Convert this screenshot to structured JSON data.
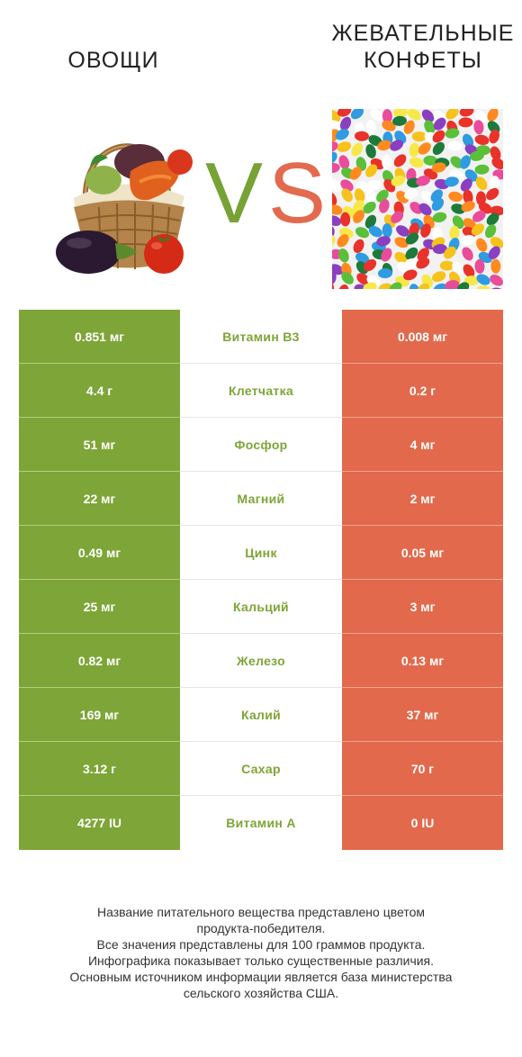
{
  "header": {
    "left_title": "ОВОЩИ",
    "right_title_line1": "ЖЕВАТЕЛЬНЫЕ",
    "right_title_line2": "КОНФЕТЫ",
    "vs_v": "V",
    "vs_s": "S"
  },
  "colors": {
    "left_product": "#7ea537",
    "right_product": "#e2694c"
  },
  "rows": [
    {
      "left": "0.851 мг",
      "nutrient": "Витамин B3",
      "right": "0.008 мг",
      "winner": "left"
    },
    {
      "left": "4.4 г",
      "nutrient": "Клетчатка",
      "right": "0.2 г",
      "winner": "left"
    },
    {
      "left": "51 мг",
      "nutrient": "Фосфор",
      "right": "4 мг",
      "winner": "left"
    },
    {
      "left": "22 мг",
      "nutrient": "Магний",
      "right": "2 мг",
      "winner": "left"
    },
    {
      "left": "0.49 мг",
      "nutrient": "Цинк",
      "right": "0.05 мг",
      "winner": "left"
    },
    {
      "left": "25 мг",
      "nutrient": "Кальций",
      "right": "3 мг",
      "winner": "left"
    },
    {
      "left": "0.82 мг",
      "nutrient": "Железо",
      "right": "0.13 мг",
      "winner": "left"
    },
    {
      "left": "169 мг",
      "nutrient": "Калий",
      "right": "37 мг",
      "winner": "left"
    },
    {
      "left": "3.12 г",
      "nutrient": "Сахар",
      "right": "70 г",
      "winner": "left"
    },
    {
      "left": "4277 IU",
      "nutrient": "Витамин A",
      "right": "0 IU",
      "winner": "left"
    }
  ],
  "footer": {
    "line1": "Название питательного вещества представлено цветом",
    "line2": "продукта-победителя.",
    "line3": "Все значения представлены для 100 граммов продукта.",
    "line4": "Инфографика показывает только существенные различия.",
    "line5": "Основным источником информации является база министерства",
    "line6": "сельского хозяйства США."
  }
}
